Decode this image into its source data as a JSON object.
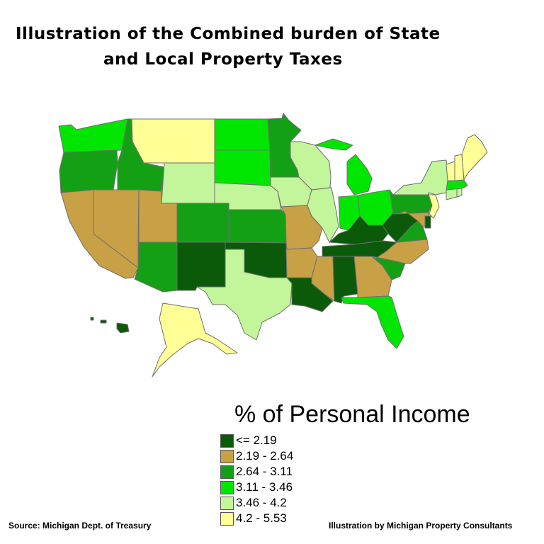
{
  "title": {
    "line1": "Illustration of the Combined burden of State",
    "line2": "and Local Property Taxes"
  },
  "legend": {
    "title": "% of Personal Income",
    "items": [
      {
        "label": "<= 2.19",
        "color": "#0a5a0a"
      },
      {
        "label": "2.19 - 2.64",
        "color": "#c8a046"
      },
      {
        "label": "2.64 - 3.11",
        "color": "#14a014"
      },
      {
        "label": "3.11 - 3.46",
        "color": "#00e600"
      },
      {
        "label": "3.46 - 4.2",
        "color": "#c3f59b"
      },
      {
        "label": "4.2 - 5.53",
        "color": "#ffff96"
      }
    ]
  },
  "footer": {
    "source": "Source:  Michigan Dept. of Treasury",
    "credit": "Illustration by Michigan Property Consultants"
  },
  "map": {
    "states": [
      {
        "name": "WA",
        "bracket": 3
      },
      {
        "name": "OR",
        "bracket": 2
      },
      {
        "name": "CA",
        "bracket": 1
      },
      {
        "name": "ID",
        "bracket": 2
      },
      {
        "name": "NV",
        "bracket": 1
      },
      {
        "name": "MT",
        "bracket": 5
      },
      {
        "name": "WY",
        "bracket": 4
      },
      {
        "name": "UT",
        "bracket": 1
      },
      {
        "name": "AZ",
        "bracket": 2
      },
      {
        "name": "CO",
        "bracket": 2
      },
      {
        "name": "NM",
        "bracket": 0
      },
      {
        "name": "ND",
        "bracket": 3
      },
      {
        "name": "SD",
        "bracket": 3
      },
      {
        "name": "NE",
        "bracket": 4
      },
      {
        "name": "KS",
        "bracket": 2
      },
      {
        "name": "OK",
        "bracket": 0
      },
      {
        "name": "TX",
        "bracket": 4
      },
      {
        "name": "MN",
        "bracket": 2
      },
      {
        "name": "IA",
        "bracket": 4
      },
      {
        "name": "MO",
        "bracket": 1
      },
      {
        "name": "AR",
        "bracket": 1
      },
      {
        "name": "LA",
        "bracket": 0
      },
      {
        "name": "WI",
        "bracket": 4
      },
      {
        "name": "IL",
        "bracket": 4
      },
      {
        "name": "MI",
        "bracket": 3
      },
      {
        "name": "IN",
        "bracket": 3
      },
      {
        "name": "OH",
        "bracket": 3
      },
      {
        "name": "KY",
        "bracket": 0
      },
      {
        "name": "TN",
        "bracket": 0
      },
      {
        "name": "MS",
        "bracket": 1
      },
      {
        "name": "AL",
        "bracket": 0
      },
      {
        "name": "GA",
        "bracket": 1
      },
      {
        "name": "FL",
        "bracket": 3
      },
      {
        "name": "SC",
        "bracket": 2
      },
      {
        "name": "NC",
        "bracket": 1
      },
      {
        "name": "VA",
        "bracket": 2
      },
      {
        "name": "WV",
        "bracket": 0
      },
      {
        "name": "PA",
        "bracket": 2
      },
      {
        "name": "MD",
        "bracket": 1
      },
      {
        "name": "DE",
        "bracket": 0
      },
      {
        "name": "NJ",
        "bracket": 5
      },
      {
        "name": "NY",
        "bracket": 4
      },
      {
        "name": "CT",
        "bracket": 4
      },
      {
        "name": "RI",
        "bracket": 4
      },
      {
        "name": "MA",
        "bracket": 3
      },
      {
        "name": "VT",
        "bracket": 5
      },
      {
        "name": "NH",
        "bracket": 5
      },
      {
        "name": "ME",
        "bracket": 5
      },
      {
        "name": "AK",
        "bracket": 5
      },
      {
        "name": "HI",
        "bracket": 0
      }
    ]
  }
}
